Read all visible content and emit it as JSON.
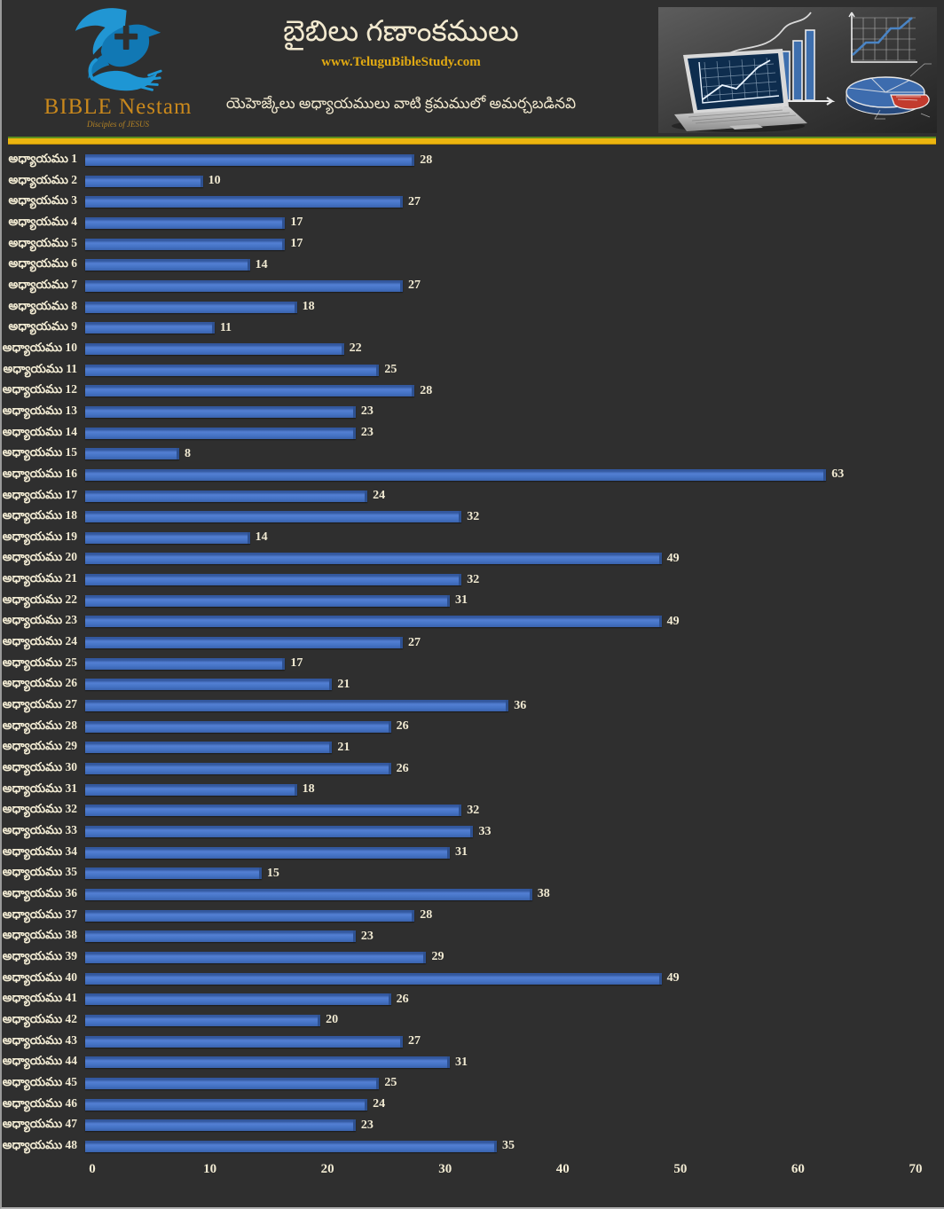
{
  "header": {
    "logo": {
      "brand": "BIBLE Nestam",
      "tagline": "Disciples of JESUS",
      "icon": "dove-cross-hand"
    },
    "title": "బైబిలు గణాంకములు",
    "website": "www.TeluguBibleStudy.com",
    "subtitle": "యెహెజ్కేలు అధ్యాయములు వాటి క్రమములో అమర్చబడినవి",
    "photo_icons": [
      "laptop-icon",
      "bar-chart-sketch-icon",
      "line-chart-sketch-icon",
      "pie-chart-sketch-icon"
    ]
  },
  "colors": {
    "background": "#2F2F2F",
    "bar": "#4472C4",
    "bar_edge": "#2E5191",
    "text_cream": "#F2EBD3",
    "divider_gold": "#ECB50F",
    "divider_green": "#5F8F1E",
    "brand_gold": "#C9881C",
    "website_gold": "#E2AA12"
  },
  "chart_data": {
    "type": "bar",
    "orientation": "horizontal",
    "title": "బైబిలు గణాంకములు",
    "subtitle": "యెహెజ్కేలు అధ్యాయములు వాటి క్రమములో అమర్చబడినవి",
    "categories": [
      "అధ్యాయము 1",
      "అధ్యాయము 2",
      "అధ్యాయము 3",
      "అధ్యాయము 4",
      "అధ్యాయము 5",
      "అధ్యాయము 6",
      "అధ్యాయము 7",
      "అధ్యాయము 8",
      "అధ్యాయము 9",
      "అధ్యాయము 10",
      "అధ్యాయము 11",
      "అధ్యాయము 12",
      "అధ్యాయము 13",
      "అధ్యాయము 14",
      "అధ్యాయము 15",
      "అధ్యాయము 16",
      "అధ్యాయము 17",
      "అధ్యాయము 18",
      "అధ్యాయము 19",
      "అధ్యాయము 20",
      "అధ్యాయము 21",
      "అధ్యాయము 22",
      "అధ్యాయము 23",
      "అధ్యాయము 24",
      "అధ్యాయము 25",
      "అధ్యాయము 26",
      "అధ్యాయము 27",
      "అధ్యాయము 28",
      "అధ్యాయము 29",
      "అధ్యాయము 30",
      "అధ్యాయము 31",
      "అధ్యాయము 32",
      "అధ్యాయము 33",
      "అధ్యాయము 34",
      "అధ్యాయము 35",
      "అధ్యాయము 36",
      "అధ్యాయము 37",
      "అధ్యాయము 38",
      "అధ్యాయము 39",
      "అధ్యాయము 40",
      "అధ్యాయము 41",
      "అధ్యాయము 42",
      "అధ్యాయము 43",
      "అధ్యాయము 44",
      "అధ్యాయము 45",
      "అధ్యాయము 46",
      "అధ్యాయము 47",
      "అధ్యాయము 48"
    ],
    "values": [
      28,
      10,
      27,
      17,
      17,
      14,
      27,
      18,
      11,
      22,
      25,
      28,
      23,
      23,
      8,
      63,
      24,
      32,
      14,
      49,
      32,
      31,
      49,
      27,
      17,
      21,
      36,
      26,
      21,
      26,
      18,
      32,
      33,
      31,
      15,
      38,
      28,
      23,
      29,
      49,
      26,
      20,
      27,
      31,
      25,
      24,
      23,
      35
    ],
    "data_labels": true,
    "xlim": [
      0,
      70
    ],
    "x_ticks": [
      0,
      10,
      20,
      30,
      40,
      50,
      60,
      70
    ],
    "grid": false,
    "legend": false,
    "bar_color": "#4472C4",
    "label_color": "#F2EBD3"
  }
}
